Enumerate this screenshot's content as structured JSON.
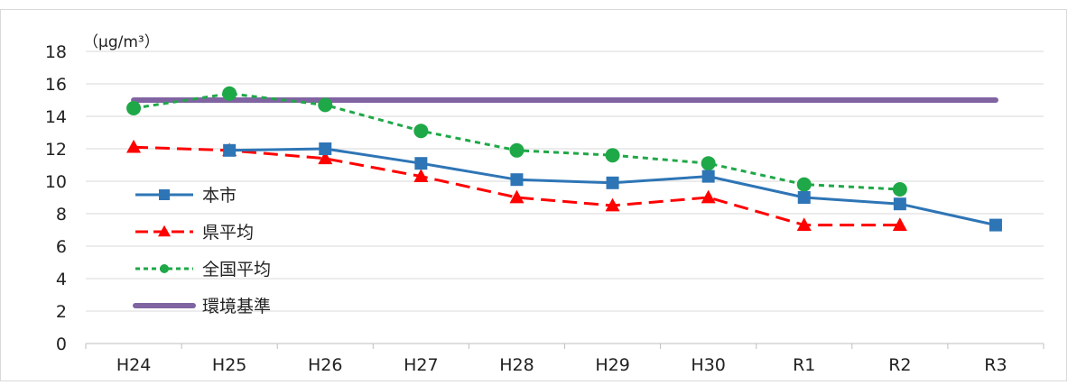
{
  "chart_data": {
    "type": "line",
    "title": "",
    "unit_label": "（μg/m³）",
    "xlabel": "",
    "ylabel": "",
    "categories": [
      "H24",
      "H25",
      "H26",
      "H27",
      "H28",
      "H29",
      "H30",
      "R1",
      "R2",
      "R3"
    ],
    "ylim": [
      0,
      18
    ],
    "yticks": [
      0,
      2,
      4,
      6,
      8,
      10,
      12,
      14,
      16,
      18
    ],
    "grid": true,
    "legend_position": "left-middle",
    "series": [
      {
        "name": "本市",
        "color": "#2e75b6",
        "marker": "square",
        "dash": "solid",
        "values": [
          null,
          11.9,
          12.0,
          11.1,
          10.1,
          9.9,
          10.3,
          9.0,
          8.6,
          7.3
        ]
      },
      {
        "name": "県平均",
        "color": "#ff0000",
        "marker": "triangle",
        "dash": "dashed",
        "values": [
          12.1,
          11.9,
          11.4,
          10.3,
          9.0,
          8.5,
          9.0,
          7.3,
          7.3,
          null
        ]
      },
      {
        "name": "全国平均",
        "color": "#1fa847",
        "marker": "circle",
        "dash": "dotted",
        "values": [
          14.5,
          15.4,
          14.7,
          13.1,
          11.9,
          11.6,
          11.1,
          9.8,
          9.5,
          null
        ]
      },
      {
        "name": "環境基準",
        "color": "#8064a2",
        "marker": "none",
        "dash": "solid",
        "values": [
          15,
          15,
          15,
          15,
          15,
          15,
          15,
          15,
          15,
          15
        ]
      }
    ]
  }
}
